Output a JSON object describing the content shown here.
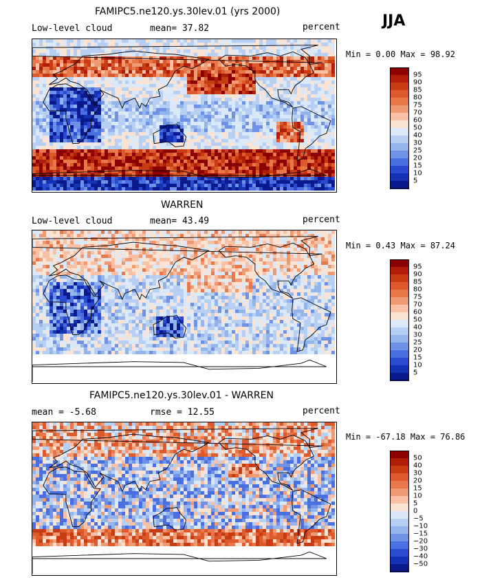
{
  "season": "JJA",
  "panels": [
    {
      "title": "FAMIPC5.ne120.ys.30lev.01 (yrs 2000)",
      "left_label": "Low-level cloud",
      "mid_label": "mean=  37.82",
      "right_label": "percent",
      "minmax": "Min =   0.00 Max =  98.92",
      "colorbar_labels": [
        "95",
        "90",
        "85",
        "80",
        "75",
        "70",
        "60",
        "50",
        "40",
        "30",
        "25",
        "20",
        "15",
        "10",
        "5"
      ]
    },
    {
      "title": "WARREN",
      "left_label": "Low-level cloud",
      "mid_label": "mean=  43.49",
      "right_label": "percent",
      "minmax": "Min =   0.43 Max =  87.24",
      "colorbar_labels": [
        "95",
        "90",
        "85",
        "80",
        "75",
        "70",
        "60",
        "50",
        "40",
        "30",
        "25",
        "20",
        "15",
        "10",
        "5"
      ]
    },
    {
      "title": "FAMIPC5.ne120.ys.30lev.01 - WARREN",
      "left_label": "mean =  -5.68",
      "mid_label": "rmse =  12.55",
      "right_label": "percent",
      "minmax": "Min = -67.18 Max =  76.86",
      "colorbar_labels": [
        "50",
        "40",
        "30",
        "20",
        "15",
        "10",
        "5",
        "0",
        "−5",
        "−10",
        "−15",
        "−20",
        "−30",
        "−40",
        "−50"
      ]
    }
  ],
  "colors": {
    "scale": [
      "#8b0000",
      "#b01e0a",
      "#c83c14",
      "#dc5a2c",
      "#e8784a",
      "#f09a74",
      "#f8c0a4",
      "#fbe3d4",
      "#dbe8f8",
      "#b6cff2",
      "#94b5ec",
      "#6f92e6",
      "#4a6fe0",
      "#2a4ad0",
      "#1632b4",
      "#0a1a8c"
    ]
  }
}
